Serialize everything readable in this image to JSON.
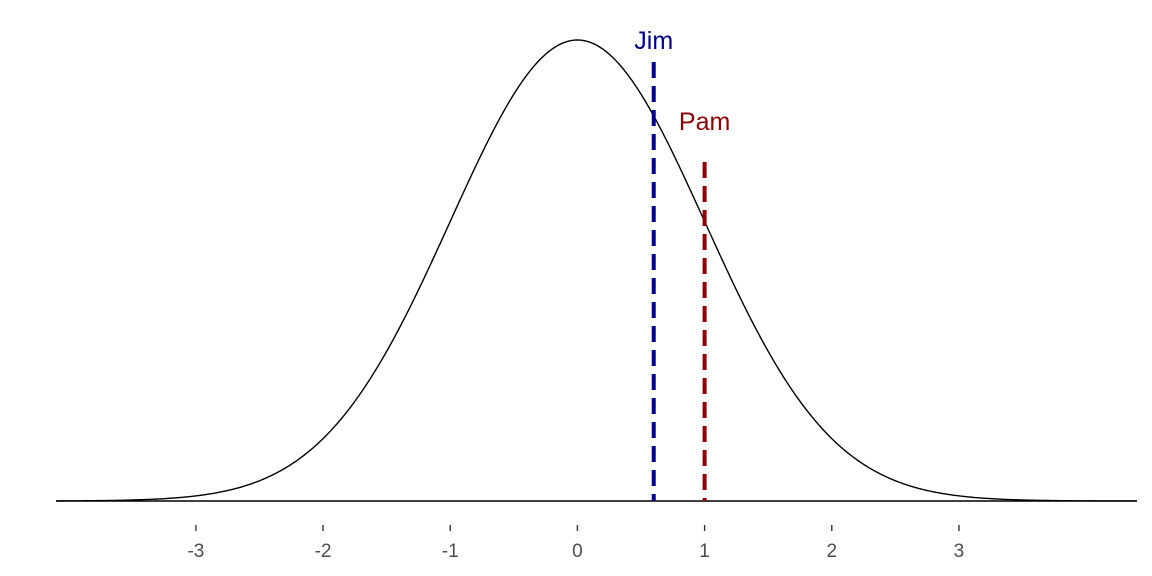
{
  "chart_data": {
    "type": "line",
    "title": "",
    "xlabel": "",
    "ylabel": "",
    "xlim": [
      -4.1,
      4.4
    ],
    "ylim": [
      0,
      0.4
    ],
    "x_ticks": [
      -3,
      -2,
      -1,
      0,
      1,
      2,
      3
    ],
    "x_tick_labels": [
      "-3",
      "-2",
      "-1",
      "0",
      "1",
      "2",
      "3"
    ],
    "grid": false,
    "legend": "none",
    "series": [
      {
        "distribution": "standard normal density",
        "mean": 0,
        "sd": 1,
        "color": "#000000"
      }
    ],
    "markers": [
      {
        "label": "Jim",
        "x": 0.6,
        "color": "#00008b"
      },
      {
        "label": "Pam",
        "x": 1.0,
        "color": "#8b0000"
      }
    ]
  }
}
